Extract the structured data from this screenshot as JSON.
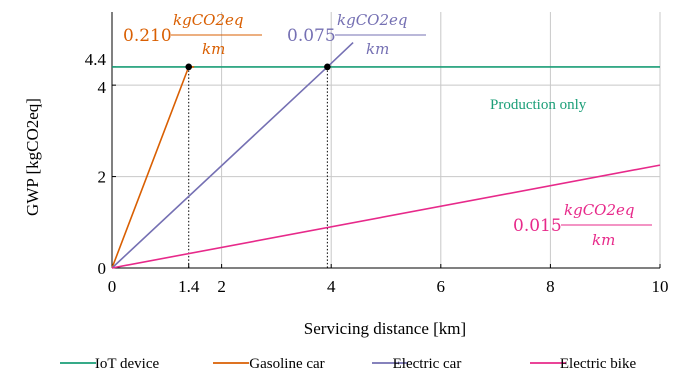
{
  "chart_data": {
    "type": "line",
    "title": "",
    "xlabel": "Servicing distance [km]",
    "ylabel": "GWP [kgCO2eq]",
    "xlim": [
      0,
      10
    ],
    "ylim": [
      0,
      5.6
    ],
    "xticks": [
      "0",
      "1.4",
      "2",
      "4",
      "6",
      "8",
      "10"
    ],
    "xtick_values": [
      0,
      1.4,
      2,
      4,
      6,
      8,
      10
    ],
    "yticks": [
      "0",
      "2",
      "4",
      "4.4"
    ],
    "ytick_values": [
      0,
      2,
      4,
      4.4
    ],
    "grid": true,
    "legend_position": "bottom",
    "series": [
      {
        "name": "IoT device",
        "color": "#1a9e77",
        "x": [
          0,
          10
        ],
        "y": [
          4.4,
          4.4
        ]
      },
      {
        "name": "Gasoline car",
        "color": "#d95f02",
        "x": [
          0,
          1.4,
          1.5
        ],
        "y": [
          0,
          4.4,
          4.4
        ],
        "slope": 3.14
      },
      {
        "name": "Electric car",
        "color": "#7570b3",
        "x": [
          0,
          3.93,
          4.4
        ],
        "y": [
          0,
          4.4,
          4.93
        ],
        "slope": 1.12
      },
      {
        "name": "Electric bike",
        "color": "#e7298a",
        "x": [
          0,
          10
        ],
        "y": [
          0,
          2.25
        ],
        "slope": 0.225
      }
    ],
    "intersections": [
      {
        "x": 1.4,
        "y": 4.4
      },
      {
        "x": 3.93,
        "y": 4.4
      }
    ],
    "annotations": [
      {
        "id": "gas",
        "value": "0.210",
        "numerator": "kgCO2eq",
        "denominator": "km",
        "color": "#d95f02"
      },
      {
        "id": "ecar",
        "value": "0.075",
        "numerator": "kgCO2eq",
        "denominator": "km",
        "color": "#7570b3"
      },
      {
        "id": "ebike",
        "value": "0.015",
        "numerator": "kgCO2eq",
        "denominator": "km",
        "color": "#e7298a"
      },
      {
        "id": "production",
        "text": "Production only",
        "color": "#1a9e77"
      }
    ]
  }
}
